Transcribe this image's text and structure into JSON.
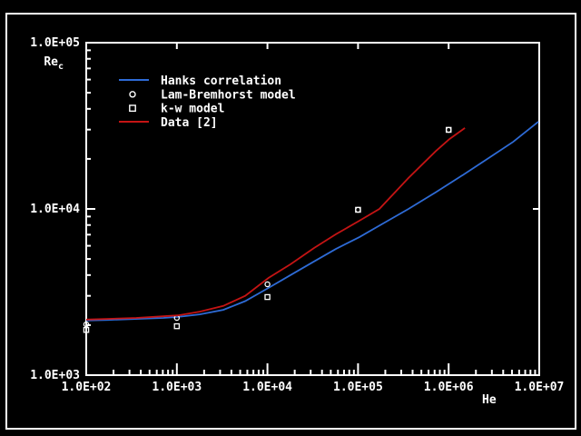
{
  "window": {
    "bg_color": "#000000",
    "frame_color": "#ffffff",
    "border_color": "#ffffff"
  },
  "axes": {
    "x": {
      "label": "He",
      "scale": "log",
      "tick_labels": [
        "1.0E+02",
        "1.0E+03",
        "1.0E+04",
        "1.0E+05",
        "1.0E+06",
        "1.0E+07"
      ],
      "min_exp": 2,
      "max_exp": 7
    },
    "y": {
      "label_base": "Re",
      "label_sub": "c",
      "scale": "log",
      "tick_labels": [
        "1.0E+05",
        "1.0E+04",
        "1.0E+03"
      ],
      "min_exp": 3,
      "max_exp": 5
    }
  },
  "legend": {
    "items": [
      {
        "label": "Hanks correlation",
        "swatch": "line",
        "color": "#2e6bd6"
      },
      {
        "label": "Lam-Bremhorst model",
        "swatch": "circle",
        "color": "#ffffff"
      },
      {
        "label": "k-w model",
        "swatch": "square",
        "color": "#ffffff"
      },
      {
        "label": "Data [2]",
        "swatch": "line",
        "color": "#c41414"
      }
    ]
  },
  "chart_data": {
    "type": "line",
    "title": "",
    "xlabel": "He",
    "ylabel": "Re_c",
    "x_scale": "log",
    "y_scale": "log",
    "xlim": [
      100,
      10000000
    ],
    "ylim": [
      1000,
      100000
    ],
    "grid": false,
    "legend_position": "upper-left-inside",
    "series": [
      {
        "name": "Hanks correlation",
        "type": "line",
        "color": "#2e6bd6",
        "points": [
          [
            100,
            2130
          ],
          [
            178,
            2150
          ],
          [
            356,
            2180
          ],
          [
            711,
            2210
          ],
          [
            1030,
            2240
          ],
          [
            1790,
            2320
          ],
          [
            3260,
            2470
          ],
          [
            5680,
            2790
          ],
          [
            10300,
            3350
          ],
          [
            18000,
            4000
          ],
          [
            32700,
            4830
          ],
          [
            57000,
            5740
          ],
          [
            104000,
            6780
          ],
          [
            181000,
            8060
          ],
          [
            361000,
            10000
          ],
          [
            723000,
            12600
          ],
          [
            1440000,
            16000
          ],
          [
            2880000,
            20500
          ],
          [
            5140000,
            25300
          ],
          [
            9800000,
            33500
          ]
        ]
      },
      {
        "name": "Lam-Bremhorst model",
        "type": "scatter-circle",
        "color": "#ffffff",
        "points": [
          [
            100,
            2020
          ],
          [
            1000,
            2210
          ],
          [
            10000,
            3520
          ],
          [
            100000,
            9880
          ],
          [
            1000000,
            29900
          ]
        ]
      },
      {
        "name": "k-w model",
        "type": "scatter-square",
        "color": "#ffffff",
        "points": [
          [
            100,
            1870
          ],
          [
            1000,
            1970
          ],
          [
            10000,
            2950
          ],
          [
            100000,
            9880
          ],
          [
            1000000,
            29900
          ]
        ]
      },
      {
        "name": "Data [2]",
        "type": "line",
        "color": "#c41414",
        "points": [
          [
            100,
            2160
          ],
          [
            356,
            2210
          ],
          [
            1030,
            2290
          ],
          [
            1790,
            2410
          ],
          [
            3260,
            2610
          ],
          [
            5680,
            3000
          ],
          [
            10300,
            3850
          ],
          [
            18000,
            4650
          ],
          [
            32700,
            5820
          ],
          [
            57000,
            7040
          ],
          [
            104000,
            8500
          ],
          [
            172000,
            10000
          ],
          [
            361000,
            15350
          ],
          [
            723000,
            22300
          ],
          [
            1020000,
            26300
          ],
          [
            1510000,
            30700
          ]
        ]
      }
    ]
  }
}
